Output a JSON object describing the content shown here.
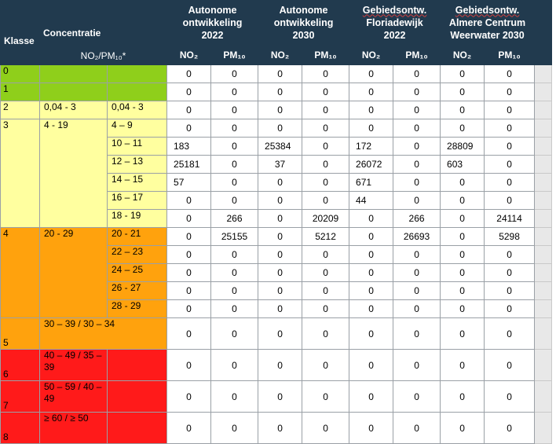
{
  "header": {
    "klasse": "Klasse",
    "concentratie": "Concentratie",
    "concentratie_sub": "NO₂/PM₁₀*",
    "scenarios": [
      {
        "line1": "Autonome",
        "line2": "ontwikkeling",
        "line3": "2022"
      },
      {
        "line1": "Autonome",
        "line2": "ontwikkeling",
        "line3": "2030"
      },
      {
        "line1": "Gebiedsontw.",
        "line2": "Floriadewijk",
        "line3": "2022"
      },
      {
        "line1": "Gebiedsontw.",
        "line2": "Almere Centrum",
        "line3": "Weerwater 2030"
      }
    ],
    "sub_no2": "NO₂",
    "sub_pm10": "PM₁₀"
  },
  "colors": {
    "header_bg": "#213a4e",
    "class_0_1": "#8fcf1b",
    "class_2_3": "#ffff9f",
    "class_4_5": "#ffa20d",
    "class_6_8": "#ff1a1a"
  },
  "rows": [
    {
      "klasse": "0",
      "conc": "",
      "sub": "",
      "vals": [
        "0",
        "0",
        "0",
        "0",
        "0",
        "0",
        "0",
        "0"
      ]
    },
    {
      "klasse": "1",
      "conc": "",
      "sub": "",
      "vals": [
        "0",
        "0",
        "0",
        "0",
        "0",
        "0",
        "0",
        "0"
      ]
    },
    {
      "klasse": "2",
      "conc": "0,04 - 3",
      "sub": "0,04 - 3",
      "vals": [
        "0",
        "0",
        "0",
        "0",
        "0",
        "0",
        "0",
        "0"
      ]
    },
    {
      "klasse": "3",
      "conc": "4 - 19",
      "sub": "4 – 9",
      "vals": [
        "0",
        "0",
        "0",
        "0",
        "0",
        "0",
        "0",
        "0"
      ]
    },
    {
      "klasse": "",
      "conc": "",
      "sub": "10 – 11",
      "vals": [
        "183",
        "0",
        "25384",
        "0",
        "172",
        "0",
        "28809",
        "0"
      ]
    },
    {
      "klasse": "",
      "conc": "",
      "sub": "12 – 13",
      "vals": [
        "25181",
        "0",
        "37",
        "0",
        "26072",
        "0",
        "603",
        "0"
      ]
    },
    {
      "klasse": "",
      "conc": "",
      "sub": "14 – 15",
      "vals": [
        "57",
        "0",
        "0",
        "0",
        "671",
        "0",
        "0",
        "0"
      ]
    },
    {
      "klasse": "",
      "conc": "",
      "sub": "16 – 17",
      "vals": [
        "0",
        "0",
        "0",
        "0",
        "44",
        "0",
        "0",
        "0"
      ]
    },
    {
      "klasse": "",
      "conc": "",
      "sub": "18 - 19",
      "vals": [
        "0",
        "266",
        "0",
        "20209",
        "0",
        "266",
        "0",
        "24114"
      ]
    },
    {
      "klasse": "4",
      "conc": "20 - 29",
      "sub": "20 - 21",
      "vals": [
        "0",
        "25155",
        "0",
        "5212",
        "0",
        "26693",
        "0",
        "5298"
      ]
    },
    {
      "klasse": "",
      "conc": "",
      "sub": "22 – 23",
      "vals": [
        "0",
        "0",
        "0",
        "0",
        "0",
        "0",
        "0",
        "0"
      ]
    },
    {
      "klasse": "",
      "conc": "",
      "sub": "24 – 25",
      "vals": [
        "0",
        "0",
        "0",
        "0",
        "0",
        "0",
        "0",
        "0"
      ]
    },
    {
      "klasse": "",
      "conc": "",
      "sub": "26 - 27",
      "vals": [
        "0",
        "0",
        "0",
        "0",
        "0",
        "0",
        "0",
        "0"
      ]
    },
    {
      "klasse": "",
      "conc": "",
      "sub": "28 - 29",
      "vals": [
        "0",
        "0",
        "0",
        "0",
        "0",
        "0",
        "0",
        "0"
      ]
    },
    {
      "klasse": "5",
      "conc": "30 – 39 / 30 – 34",
      "sub": "",
      "vals": [
        "0",
        "0",
        "0",
        "0",
        "0",
        "0",
        "0",
        "0"
      ]
    },
    {
      "klasse": "6",
      "conc": "40 – 49 / 35 – 39",
      "sub": "",
      "vals": [
        "0",
        "0",
        "0",
        "0",
        "0",
        "0",
        "0",
        "0"
      ]
    },
    {
      "klasse": "7",
      "conc": "50 – 59 / 40 – 49",
      "sub": "",
      "vals": [
        "0",
        "0",
        "0",
        "0",
        "0",
        "0",
        "0",
        "0"
      ]
    },
    {
      "klasse": "8",
      "conc": "≥ 60 / ≥ 50",
      "sub": "",
      "vals": [
        "0",
        "0",
        "0",
        "0",
        "0",
        "0",
        "0",
        "0"
      ]
    }
  ]
}
